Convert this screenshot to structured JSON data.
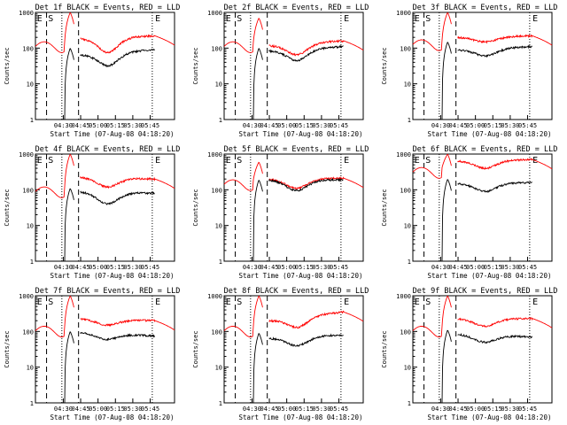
{
  "colors": {
    "events": "#000000",
    "lld": "#ff0000",
    "axis": "#000000",
    "background": "#ffffff"
  },
  "chart_data": [
    {
      "type": "line",
      "title": "Det 1f BLACK = Events, RED = LLD",
      "xlabel": "Start Time (07-Aug-08 04:18:20)",
      "ylabel": "Counts/sec",
      "yscale": "log",
      "ylim": [
        1,
        1000
      ],
      "ytick_labels": [
        "1",
        "10",
        "100",
        "1000"
      ],
      "xtick_labels": [
        "04:30",
        "04:45",
        "05:00",
        "05:15",
        "05:30",
        "05:45"
      ],
      "markers": [
        "E",
        "S",
        "E"
      ],
      "series": [
        {
          "color": "red",
          "start": 150,
          "peak": 1000,
          "level": 190,
          "dip": 75,
          "end": 220
        },
        {
          "color": "black",
          "start": 0,
          "peak": 100,
          "level": 65,
          "dip": 32,
          "end": 90
        }
      ]
    },
    {
      "type": "line",
      "title": "Det 2f BLACK = Events, RED = LLD",
      "xlabel": "Start Time (07-Aug-08 04:18:20)",
      "ylabel": "Counts/sec",
      "yscale": "log",
      "ylim": [
        1,
        1000
      ],
      "ytick_labels": [
        "1",
        "10",
        "100",
        "1000"
      ],
      "xtick_labels": [
        "04:30",
        "04:45",
        "05:00",
        "05:15",
        "05:30",
        "05:45"
      ],
      "markers": [
        "E",
        "S",
        "E"
      ],
      "series": [
        {
          "color": "red",
          "start": 150,
          "peak": 700,
          "level": 120,
          "dip": 65,
          "end": 160
        },
        {
          "color": "black",
          "start": 0,
          "peak": 100,
          "level": 85,
          "dip": 45,
          "end": 110
        }
      ]
    },
    {
      "type": "line",
      "title": "Det 3f BLACK = Events, RED = LLD",
      "xlabel": "Start Time (07-Aug-08 04:18:20)",
      "ylabel": "Counts/sec",
      "yscale": "log",
      "ylim": [
        1,
        1000
      ],
      "ytick_labels": [
        "1",
        "10",
        "100",
        "1000"
      ],
      "xtick_labels": [
        "04:30",
        "04:45",
        "05:00",
        "05:15",
        "05:30",
        "05:45"
      ],
      "markers": [
        "E",
        "S",
        "E"
      ],
      "series": [
        {
          "color": "red",
          "start": 170,
          "peak": 1000,
          "level": 200,
          "dip": 150,
          "end": 220
        },
        {
          "color": "black",
          "start": 0,
          "peak": 150,
          "level": 90,
          "dip": 60,
          "end": 110
        }
      ]
    },
    {
      "type": "line",
      "title": "Det 4f BLACK = Events, RED = LLD",
      "xlabel": "Start Time (07-Aug-08 04:18:20)",
      "ylabel": "Counts/sec",
      "yscale": "log",
      "ylim": [
        1,
        1000
      ],
      "ytick_labels": [
        "1",
        "10",
        "100",
        "1000"
      ],
      "xtick_labels": [
        "04:30",
        "04:45",
        "05:00",
        "05:15",
        "05:30",
        "05:45"
      ],
      "markers": [
        "E",
        "S",
        "E"
      ],
      "series": [
        {
          "color": "red",
          "start": 120,
          "peak": 1000,
          "level": 230,
          "dip": 120,
          "end": 200
        },
        {
          "color": "black",
          "start": 0,
          "peak": 110,
          "level": 90,
          "dip": 40,
          "end": 80
        }
      ]
    },
    {
      "type": "line",
      "title": "Det 5f BLACK = Events, RED = LLD",
      "xlabel": "Start Time (07-Aug-08 04:18:20)",
      "ylabel": "Counts/sec",
      "yscale": "log",
      "ylim": [
        1,
        1000
      ],
      "ytick_labels": [
        "1",
        "10",
        "100",
        "1000"
      ],
      "xtick_labels": [
        "04:30",
        "04:45",
        "05:00",
        "05:15",
        "05:30",
        "05:45"
      ],
      "markers": [
        "E",
        "S",
        "E"
      ],
      "series": [
        {
          "color": "red",
          "start": 190,
          "peak": 600,
          "level": 200,
          "dip": 110,
          "end": 210
        },
        {
          "color": "black",
          "start": 0,
          "peak": 190,
          "level": 190,
          "dip": 95,
          "end": 190
        }
      ]
    },
    {
      "type": "line",
      "title": "Det 6f BLACK = Events, RED = LLD",
      "xlabel": "Start Time (07-Aug-08 04:18:20)",
      "ylabel": "Counts/sec",
      "yscale": "log",
      "ylim": [
        1,
        1000
      ],
      "ytick_labels": [
        "1",
        "10",
        "100",
        "1000"
      ],
      "xtick_labels": [
        "04:30",
        "04:45",
        "05:00",
        "05:15",
        "05:30",
        "05:45"
      ],
      "markers": [
        "E",
        "S",
        "E"
      ],
      "series": [
        {
          "color": "red",
          "start": 420,
          "peak": 1000,
          "level": 650,
          "dip": 400,
          "end": 700
        },
        {
          "color": "black",
          "start": 0,
          "peak": 200,
          "level": 150,
          "dip": 90,
          "end": 160
        }
      ]
    },
    {
      "type": "line",
      "title": "Det 7f BLACK = Events, RED = LLD",
      "xlabel": "Start Time (07-Aug-08 04:18:20)",
      "ylabel": "Counts/sec",
      "yscale": "log",
      "ylim": [
        1,
        1000
      ],
      "ytick_labels": [
        "1",
        "10",
        "100",
        "1000"
      ],
      "xtick_labels": [
        "04:30",
        "04:45",
        "05:00",
        "05:15",
        "05:30",
        "05:45"
      ],
      "markers": [
        "E",
        "S",
        "E"
      ],
      "series": [
        {
          "color": "red",
          "start": 140,
          "peak": 1000,
          "level": 230,
          "dip": 150,
          "end": 200
        },
        {
          "color": "black",
          "start": 0,
          "peak": 100,
          "level": 95,
          "dip": 60,
          "end": 75
        }
      ]
    },
    {
      "type": "line",
      "title": "Det 8f BLACK = Events, RED = LLD",
      "xlabel": "Start Time (07-Aug-08 04:18:20)",
      "ylabel": "Counts/sec",
      "yscale": "log",
      "ylim": [
        1,
        1000
      ],
      "ytick_labels": [
        "1",
        "10",
        "100",
        "1000"
      ],
      "xtick_labels": [
        "04:30",
        "04:45",
        "05:00",
        "05:15",
        "05:30",
        "05:45"
      ],
      "markers": [
        "E",
        "S",
        "E"
      ],
      "series": [
        {
          "color": "red",
          "start": 140,
          "peak": 1000,
          "level": 200,
          "dip": 130,
          "end": 350
        },
        {
          "color": "black",
          "start": 0,
          "peak": 90,
          "level": 65,
          "dip": 40,
          "end": 80
        }
      ]
    },
    {
      "type": "line",
      "title": "Det 9f BLACK = Events, RED = LLD",
      "xlabel": "Start Time (07-Aug-08 04:18:20)",
      "ylabel": "Counts/sec",
      "yscale": "log",
      "ylim": [
        1,
        1000
      ],
      "ytick_labels": [
        "1",
        "10",
        "100",
        "1000"
      ],
      "xtick_labels": [
        "04:30",
        "04:45",
        "05:00",
        "05:15",
        "05:30",
        "05:45"
      ],
      "markers": [
        "E",
        "S",
        "E"
      ],
      "series": [
        {
          "color": "red",
          "start": 140,
          "peak": 1000,
          "level": 230,
          "dip": 140,
          "end": 230
        },
        {
          "color": "black",
          "start": 0,
          "peak": 110,
          "level": 85,
          "dip": 50,
          "end": 70
        }
      ]
    }
  ]
}
